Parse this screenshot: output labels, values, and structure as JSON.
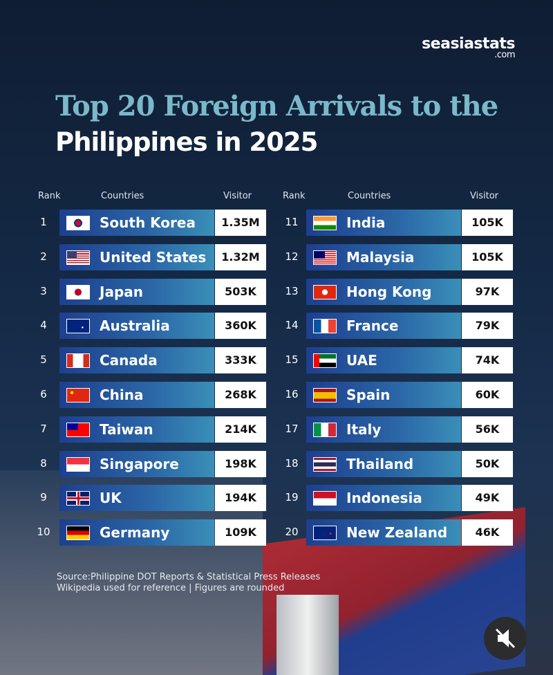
{
  "header": {
    "brand": "seasiastats",
    "brand_suffix": ".com",
    "title_line1": "Top 20 Foreign Arrivals to the",
    "title_line2": "Philippines in 2025"
  },
  "table": {
    "columns": [
      "Rank",
      "Countries",
      "Visitor"
    ],
    "rows": [
      [
        1,
        "South Korea",
        "1.35M"
      ],
      [
        2,
        "United States",
        "1.32M"
      ],
      [
        3,
        "Japan",
        "503K"
      ],
      [
        4,
        "Australia",
        "360K"
      ],
      [
        5,
        "Canada",
        "333K"
      ],
      [
        6,
        "China",
        "268K"
      ],
      [
        7,
        "Taiwan",
        "214K"
      ],
      [
        8,
        "Singapore",
        "198K"
      ],
      [
        9,
        "UK",
        "194K"
      ],
      [
        10,
        "Germany",
        "109K"
      ],
      [
        11,
        "India",
        "105K"
      ],
      [
        12,
        "Malaysia",
        "105K"
      ],
      [
        13,
        "Hong Kong",
        "97K"
      ],
      [
        14,
        "France",
        "79K"
      ],
      [
        15,
        "UAE",
        "74K"
      ],
      [
        16,
        "Spain",
        "60K"
      ],
      [
        17,
        "Italy",
        "56K"
      ],
      [
        18,
        "Thailand",
        "50K"
      ],
      [
        19,
        "Indonesia",
        "49K"
      ],
      [
        20,
        "New Zealand",
        "46K"
      ]
    ]
  },
  "footer": {
    "source": "Source:Philippine DOT Reports & Statistical Press Releases",
    "note": "Wikipedia used for reference | Figures are rounded"
  }
}
